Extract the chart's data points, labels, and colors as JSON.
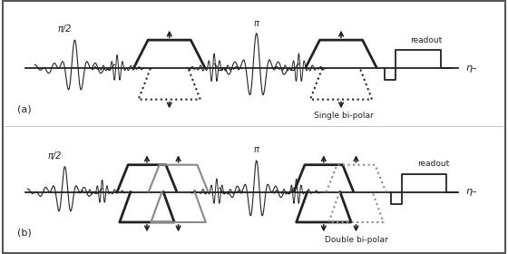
{
  "fig_width": 5.6,
  "fig_height": 2.8,
  "dpi": 100,
  "border_color": "#333333",
  "panel_a_label": "(a)",
  "panel_b_label": "(b)",
  "pi_half_label": "π/2",
  "pi_label": "π",
  "readout_label": "readout",
  "single_bipolar_label": "Single bi-polar",
  "double_bipolar_label": "Double bi-polar",
  "n_symbol": "η–",
  "line_color": "#222222",
  "trap_color": "#222222",
  "trap_gray": "#888888"
}
